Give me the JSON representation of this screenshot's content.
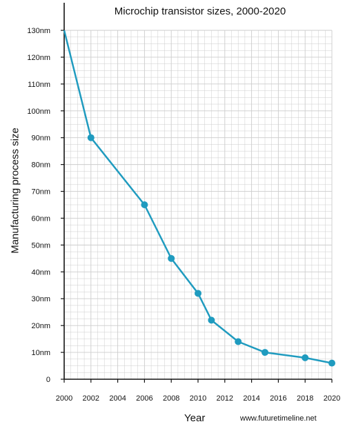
{
  "chart_data": {
    "type": "line",
    "title": "Microchip transistor sizes, 2000-2020",
    "xlabel": "Year",
    "ylabel": "Manufacturing process size",
    "x_ticks": [
      "2000",
      "2002",
      "2004",
      "2006",
      "2008",
      "2010",
      "2012",
      "2014",
      "2016",
      "2018",
      "2020"
    ],
    "y_ticks": [
      "0",
      "10nm",
      "20nm",
      "30nm",
      "40nm",
      "50nm",
      "60nm",
      "70nm",
      "80nm",
      "90nm",
      "100nm",
      "110nm",
      "120nm",
      "130nm"
    ],
    "xlim": [
      2000,
      2020
    ],
    "ylim": [
      0,
      130
    ],
    "grid": true,
    "series": [
      {
        "x": [
          2000,
          2002,
          2006,
          2008,
          2010,
          2011,
          2013,
          2015,
          2018,
          2020
        ],
        "y": [
          130,
          90,
          65,
          45,
          32,
          22,
          14,
          10,
          8,
          6
        ],
        "markers": [
          false,
          true,
          true,
          true,
          true,
          true,
          true,
          true,
          true,
          true
        ]
      }
    ],
    "colors": {
      "line": "#1f9bbf",
      "grid": "#cccccc",
      "axis": "#111111"
    }
  },
  "source_text": "www.futuretimeline.net"
}
